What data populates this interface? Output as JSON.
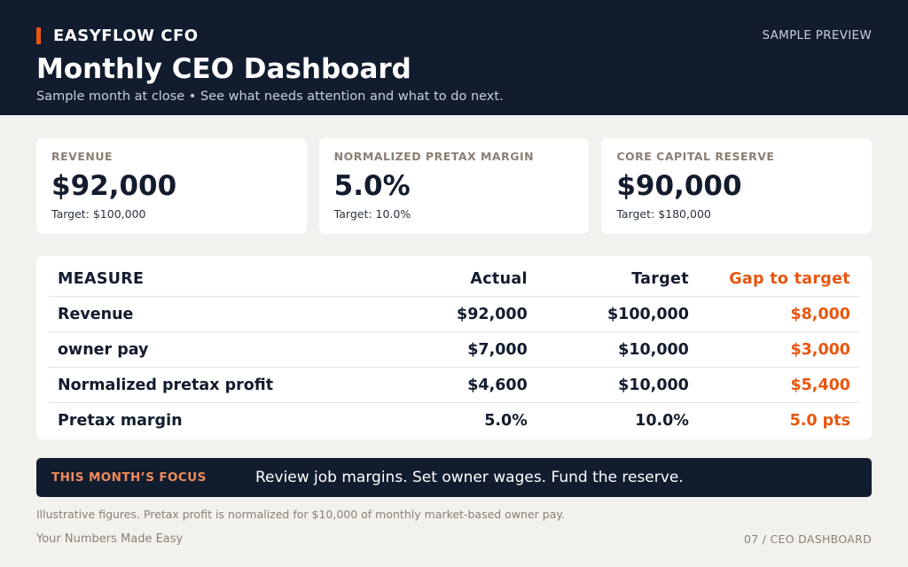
{
  "header": {
    "brand": "EASYFLOW CFO",
    "preview_label": "SAMPLE PREVIEW",
    "title": "Monthly CEO Dashboard",
    "subtitle": "Sample month at close • See what needs attention and what to do next."
  },
  "cards": [
    {
      "label": "REVENUE",
      "value": "$92,000",
      "target": "Target: $100,000"
    },
    {
      "label": "NORMALIZED PRETAX MARGIN",
      "value": "5.0%",
      "target": "Target: 10.0%"
    },
    {
      "label": "CORE CAPITAL RESERVE",
      "value": "$90,000",
      "target": "Target: $180,000"
    }
  ],
  "table": {
    "headers": [
      "MEASURE",
      "Actual",
      "Target",
      "Gap to target"
    ],
    "rows": [
      [
        "Revenue",
        "$92,000",
        "$100,000",
        "$8,000"
      ],
      [
        "owner pay",
        "$7,000",
        "$10,000",
        "$3,000"
      ],
      [
        "Normalized pretax profit",
        "$4,600",
        "$10,000",
        "$5,400"
      ],
      [
        "Pretax margin",
        "5.0%",
        "10.0%",
        "5.0 pts"
      ]
    ]
  },
  "focus": {
    "label": "THIS MONTH’S FOCUS",
    "text": "Review job margins. Set owner wages. Fund the reserve."
  },
  "footnote": "Illustrative figures. Pretax profit is normalized for $10,000 of monthly market-based owner pay.",
  "footer": {
    "left": "Your Numbers Made Easy",
    "right": "07 / CEO DASHBOARD"
  },
  "colors": {
    "navy": "#121c2f",
    "accent": "#e8560f",
    "background": "#f3f1ee"
  }
}
